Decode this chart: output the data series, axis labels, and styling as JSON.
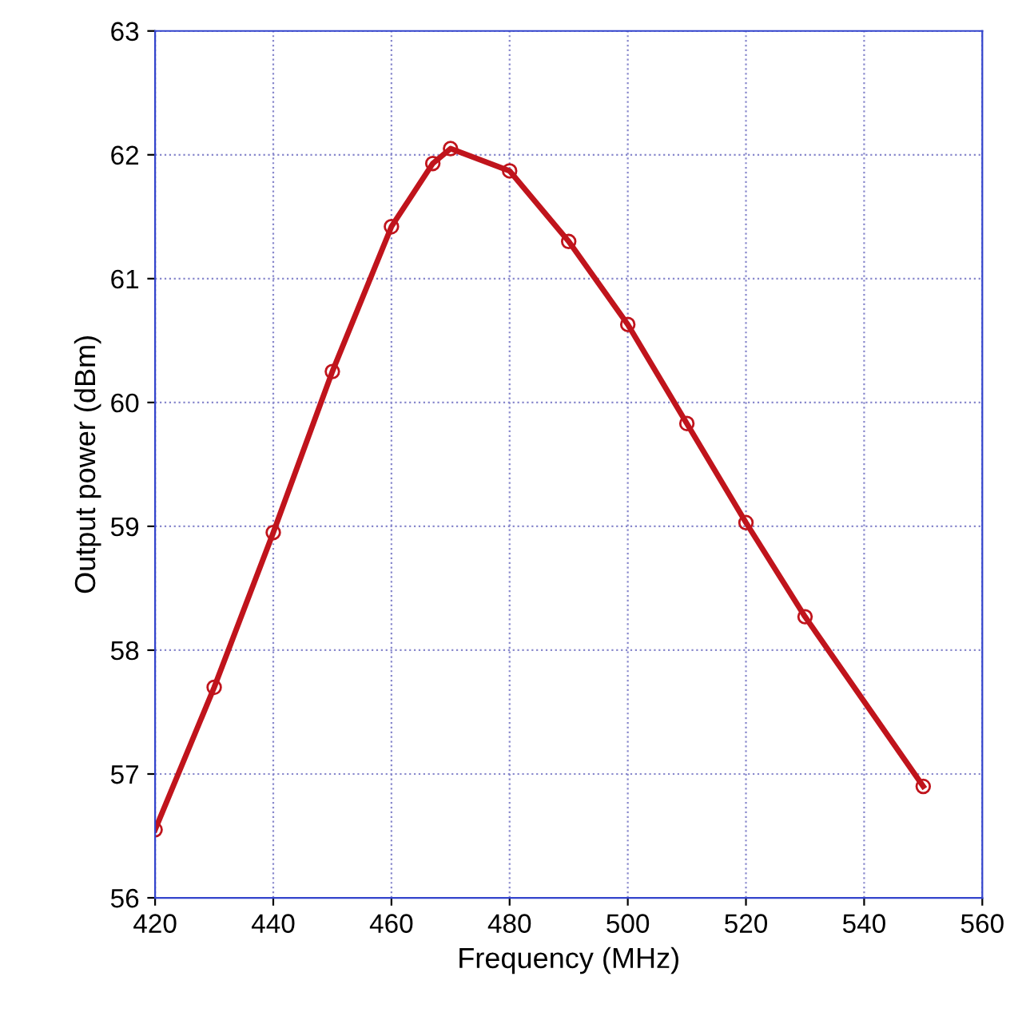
{
  "chart_data": {
    "type": "line",
    "xlabel": "Frequency (MHz)",
    "ylabel": "Output power (dBm)",
    "x": [
      420,
      430,
      440,
      450,
      460,
      467,
      470,
      480,
      490,
      500,
      510,
      520,
      530,
      550
    ],
    "series": [
      {
        "color": "#c0141c",
        "values": [
          56.55,
          57.7,
          58.95,
          60.25,
          61.42,
          61.93,
          62.05,
          61.87,
          61.3,
          60.63,
          59.83,
          59.03,
          58.27,
          56.9
        ]
      }
    ],
    "xlim": [
      420,
      560
    ],
    "xticks": [
      420,
      440,
      460,
      480,
      500,
      520,
      540,
      560
    ],
    "ylim": [
      56,
      63
    ],
    "yticks": [
      56,
      57,
      58,
      59,
      60,
      61,
      62,
      63
    ],
    "grid": true,
    "marker": "circle",
    "line_style": "solid"
  }
}
